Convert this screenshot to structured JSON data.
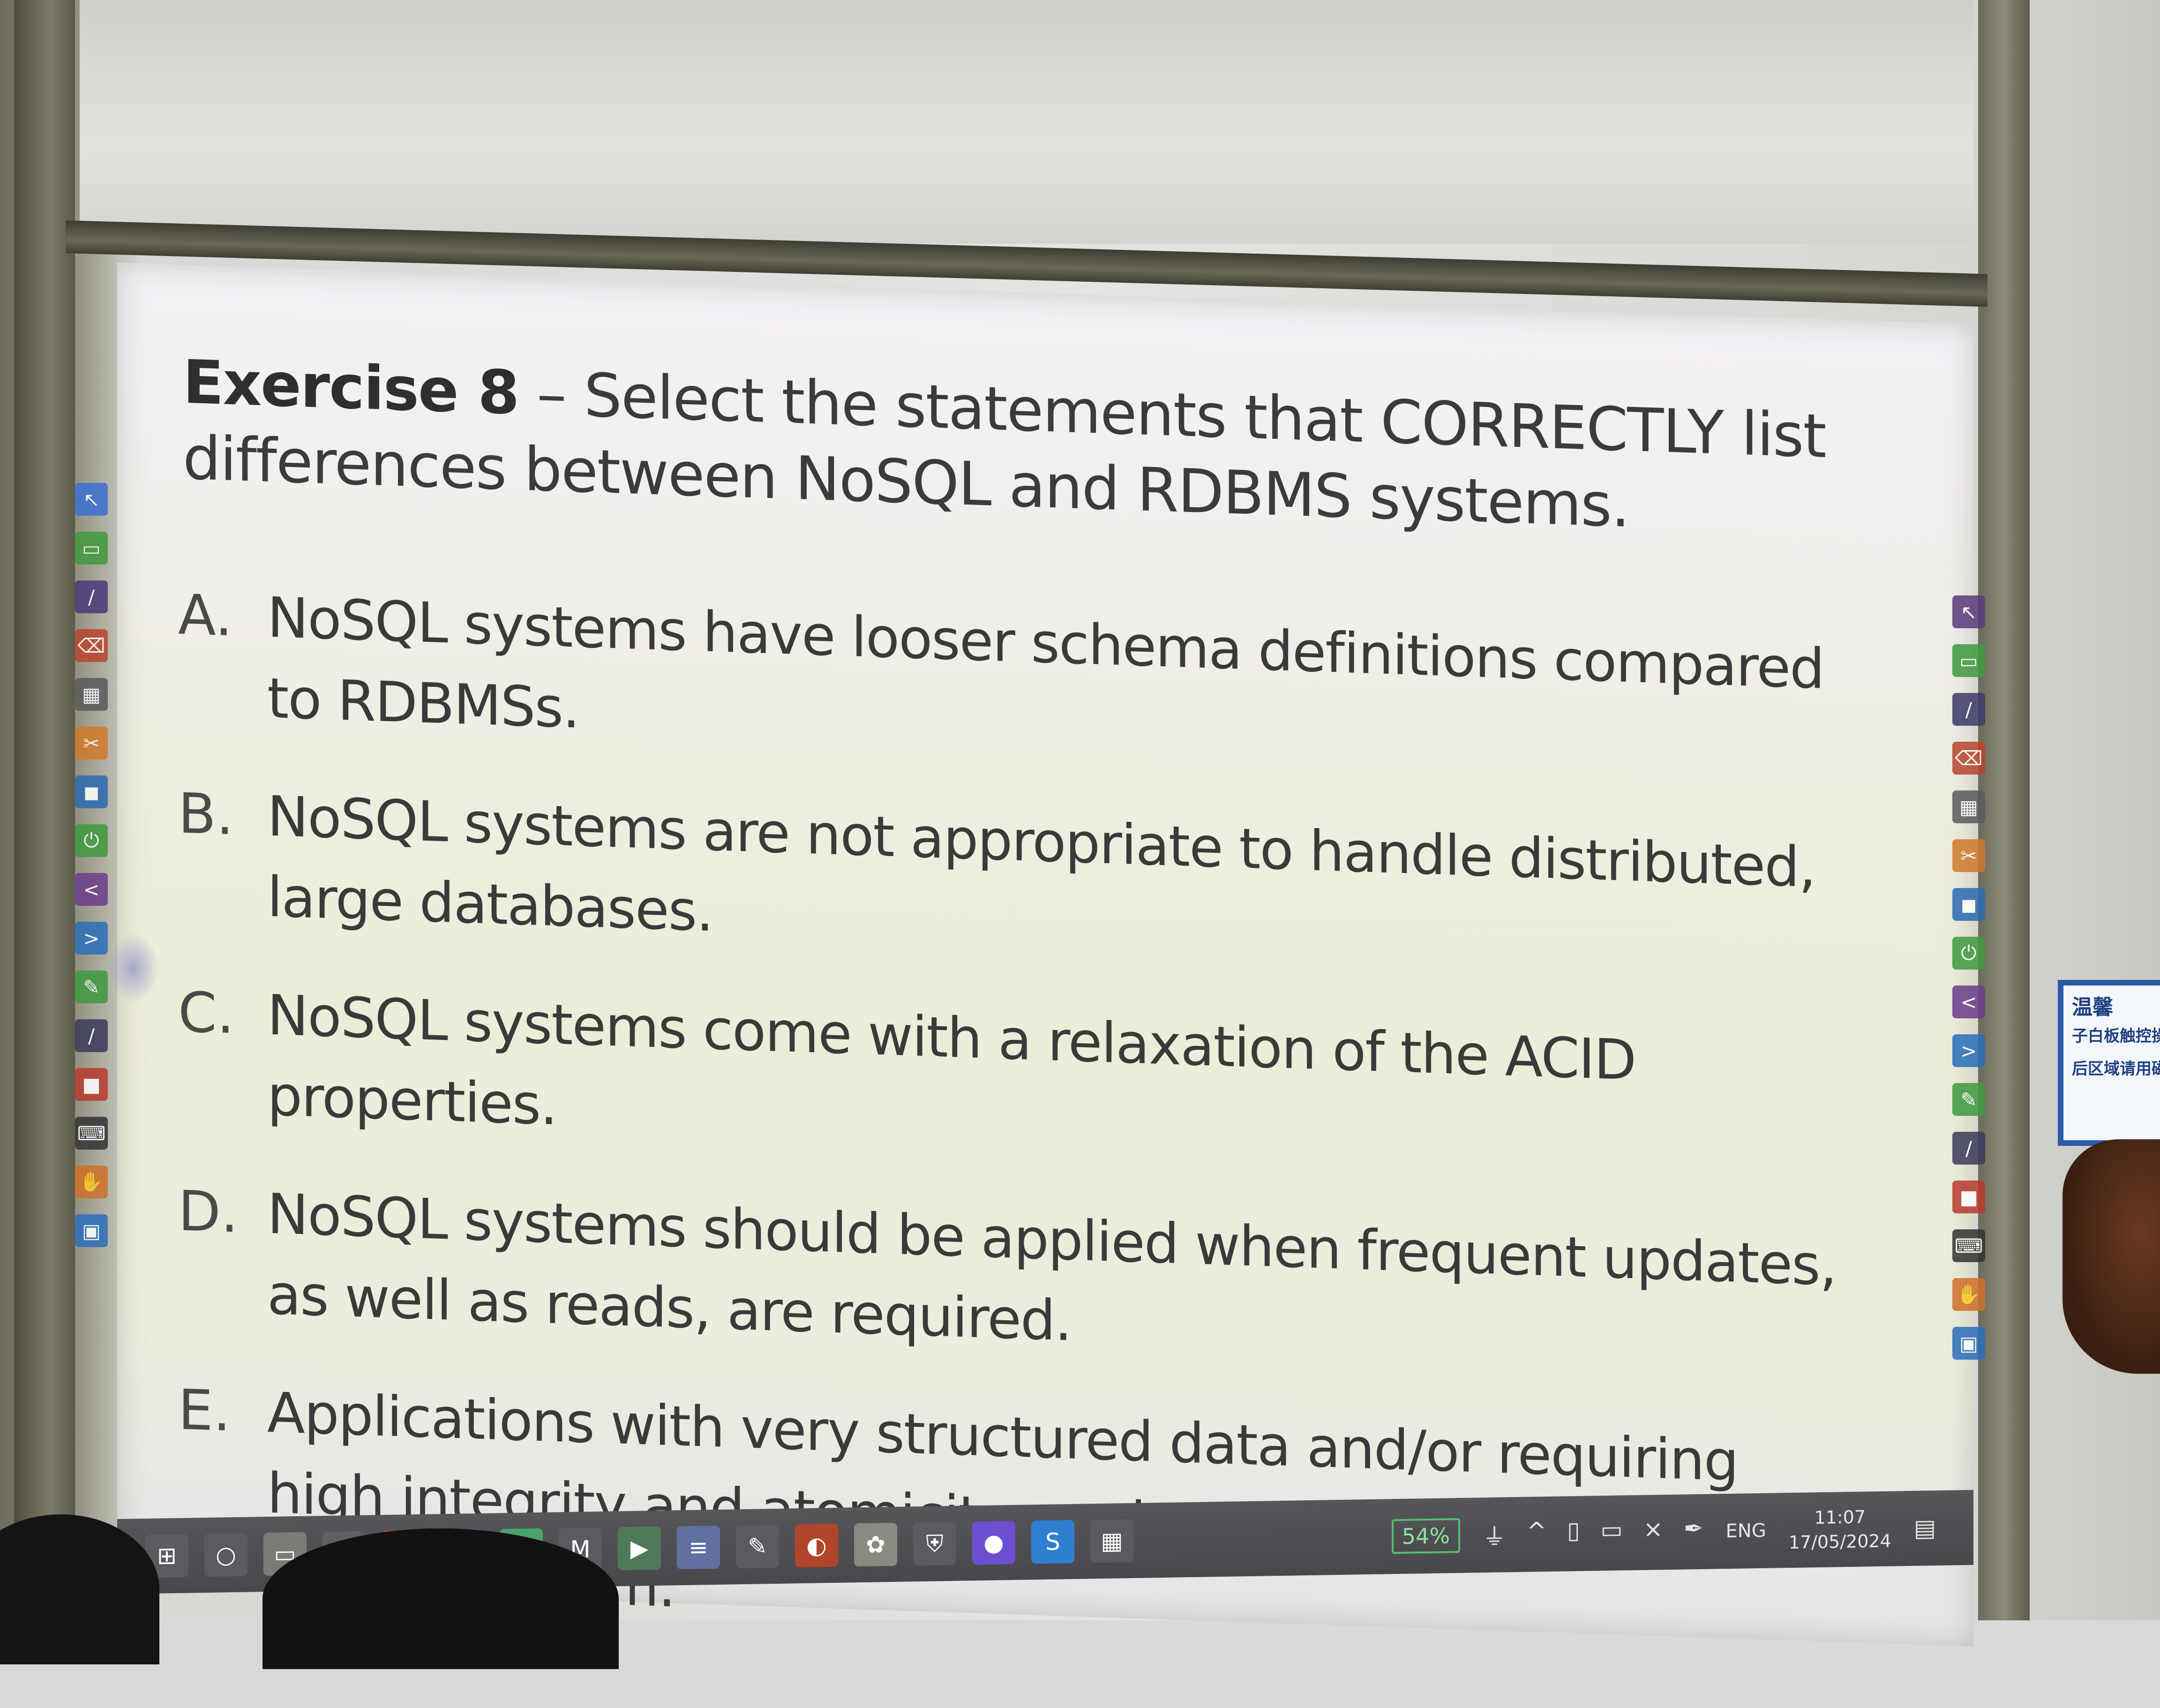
{
  "slide": {
    "title_lead": "Exercise 8",
    "title_rest": " – Select the statements that CORRECTLY list differences between NoSQL and RDBMS systems.",
    "options": [
      {
        "letter": "A.",
        "text": "NoSQL systems have looser schema definitions compared to RDBMSs."
      },
      {
        "letter": "B.",
        "text": "NoSQL systems are not appropriate to handle distributed, large databases."
      },
      {
        "letter": "C.",
        "text": "NoSQL systems come with a relaxation of the ACID properties."
      },
      {
        "letter": "D.",
        "text": "NoSQL systems should be applied when frequent updates, as well as reads, are required."
      },
      {
        "letter": "E.",
        "text": "Applications with very structured data and/or requiring high integrity and atomicity are better managed with a NoSQL system."
      }
    ]
  },
  "taskbar": {
    "battery": "54%",
    "language": "ENG",
    "time": "11:07",
    "date": "17/05/2024",
    "apps": [
      {
        "name": "start-icon",
        "glyph": "⊞",
        "color": "#5a5a60"
      },
      {
        "name": "search-icon",
        "glyph": "○",
        "color": "#5a5a60"
      },
      {
        "name": "file-explorer-icon",
        "glyph": "▭",
        "color": "#7b7a74"
      },
      {
        "name": "window-icon",
        "glyph": "▢",
        "color": "#5f5f66"
      },
      {
        "name": "powerpoint-icon",
        "glyph": "P",
        "color": "#c4502e"
      },
      {
        "name": "teams-icon",
        "glyph": "T",
        "color": "#5b5fc7"
      },
      {
        "name": "app-diamond-icon",
        "glyph": "◆",
        "color": "#4aa36a"
      },
      {
        "name": "app-m-icon",
        "glyph": "M",
        "color": "#5a5a60"
      },
      {
        "name": "terminal-icon",
        "glyph": "▶",
        "color": "#4f7a5a"
      },
      {
        "name": "app-panel-icon",
        "glyph": "≡",
        "color": "#6070a0"
      },
      {
        "name": "pen-tool-icon",
        "glyph": "✎",
        "color": "#5a5a60"
      },
      {
        "name": "browser-icon",
        "glyph": "◐",
        "color": "#b0452a"
      },
      {
        "name": "brush-icon",
        "glyph": "✿",
        "color": "#8a8a80"
      },
      {
        "name": "shield-icon",
        "glyph": "⛨",
        "color": "#5a5a60"
      },
      {
        "name": "zoom-icon",
        "glyph": "●",
        "color": "#6c4fd0"
      },
      {
        "name": "app-s-icon",
        "glyph": "S",
        "color": "#2f7fd0"
      },
      {
        "name": "calculator-icon",
        "glyph": "▦",
        "color": "#5a5a60"
      }
    ],
    "tray_icons": [
      {
        "name": "power-plug-icon",
        "glyph": "⏚"
      },
      {
        "name": "chevron-up-icon",
        "glyph": "^"
      },
      {
        "name": "device-icon",
        "glyph": "▯"
      },
      {
        "name": "battery-icon",
        "glyph": "▭"
      },
      {
        "name": "volume-muted-icon",
        "glyph": "×"
      },
      {
        "name": "pen-icon",
        "glyph": "✒"
      }
    ],
    "notifications_glyph": "▤"
  },
  "toolbars": {
    "left": [
      {
        "name": "select-tool-icon",
        "glyph": "↖",
        "color": "#3a6fd0"
      },
      {
        "name": "screen-tool-icon",
        "glyph": "▭",
        "color": "#3f9a3f"
      },
      {
        "name": "pen-tool-icon",
        "glyph": "/",
        "color": "#4a3a7a"
      },
      {
        "name": "erase-tool-icon",
        "glyph": "⌫",
        "color": "#b8452e"
      },
      {
        "name": "grid-tool-icon",
        "glyph": "▦",
        "color": "#5a5a5a"
      },
      {
        "name": "capture-tool-icon",
        "glyph": "✂",
        "color": "#d07a2a"
      },
      {
        "name": "shape-tool-icon",
        "glyph": "◼",
        "color": "#2d6ab0"
      },
      {
        "name": "power-tool-icon",
        "glyph": "⏻",
        "color": "#3f9a3f"
      },
      {
        "name": "previous-tool-icon",
        "glyph": "<",
        "color": "#6a3d8a"
      },
      {
        "name": "next-tool-icon",
        "glyph": ">",
        "color": "#2a6fb8"
      },
      {
        "name": "draw-tool-icon",
        "glyph": "✎",
        "color": "#3f9a3f"
      },
      {
        "name": "line-tool-icon",
        "glyph": "/",
        "color": "#3a3a5a"
      },
      {
        "name": "stop-tool-icon",
        "glyph": "■",
        "color": "#b83a2e"
      },
      {
        "name": "keyboard-tool-icon",
        "glyph": "⌨",
        "color": "#333333"
      },
      {
        "name": "hand-tool-icon",
        "glyph": "✋",
        "color": "#d0702a"
      },
      {
        "name": "display-tool-icon",
        "glyph": "▣",
        "color": "#2a6fb8"
      }
    ],
    "right": [
      {
        "name": "select-tool-icon",
        "glyph": "↖",
        "color": "#5a3a7a"
      },
      {
        "name": "screen-tool-icon",
        "glyph": "▭",
        "color": "#3f9a3f"
      },
      {
        "name": "pen-tool-icon",
        "glyph": "/",
        "color": "#3a3a6a"
      },
      {
        "name": "erase-tool-icon",
        "glyph": "⌫",
        "color": "#b8452e"
      },
      {
        "name": "grid-tool-icon",
        "glyph": "▦",
        "color": "#5a5a5a"
      },
      {
        "name": "capture-tool-icon",
        "glyph": "✂",
        "color": "#d07a2a"
      },
      {
        "name": "shape-tool-icon",
        "glyph": "◼",
        "color": "#2d6ab0"
      },
      {
        "name": "power-tool-icon",
        "glyph": "⏻",
        "color": "#3f9a3f"
      },
      {
        "name": "previous-tool-icon",
        "glyph": "<",
        "color": "#6a3d8a"
      },
      {
        "name": "next-tool-icon",
        "glyph": ">",
        "color": "#2a6fb8"
      },
      {
        "name": "draw-tool-icon",
        "glyph": "✎",
        "color": "#3f9a3f"
      },
      {
        "name": "line-tool-icon",
        "glyph": "/",
        "color": "#3a3a5a"
      },
      {
        "name": "stop-tool-icon",
        "glyph": "■",
        "color": "#b83a2e"
      },
      {
        "name": "keyboard-tool-icon",
        "glyph": "⌨",
        "color": "#333333"
      },
      {
        "name": "hand-tool-icon",
        "glyph": "✋",
        "color": "#d0702a"
      },
      {
        "name": "display-tool-icon",
        "glyph": "▣",
        "color": "#2a6fb8"
      }
    ]
  },
  "notice": {
    "line1": "温馨",
    "line2": "子白板触控操作",
    "line3": "后区域请用磁"
  }
}
